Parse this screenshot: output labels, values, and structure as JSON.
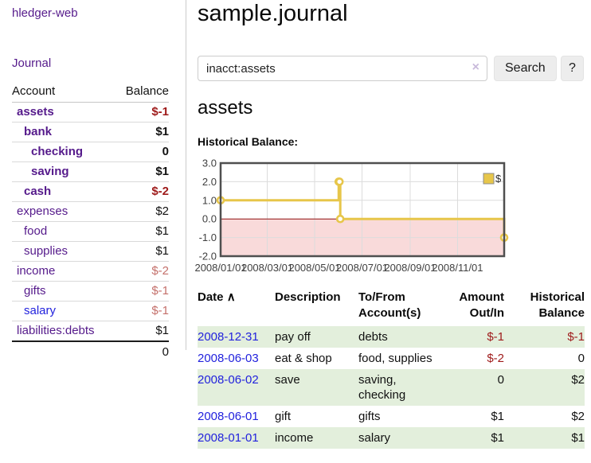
{
  "colors": {
    "link_purple": "#551a8b",
    "link_blue": "#2222dd",
    "negative_strong": "#9e1a1a",
    "negative_soft": "#c4706b",
    "row_stripe_green": "#e3efdc",
    "chart_line_gold": "#e7c64a",
    "chart_negative_pink": "#f9dada",
    "chart_zero_line": "#8f1010"
  },
  "sidebar": {
    "brand": "hledger-web",
    "nav": {
      "journal": "Journal"
    },
    "accounts": {
      "headers": {
        "account": "Account",
        "balance": "Balance"
      },
      "rows": [
        {
          "name": "assets",
          "indent": 0,
          "bold": true,
          "balance": "$-1",
          "balance_style": "neg-strong"
        },
        {
          "name": "bank",
          "indent": 1,
          "bold": true,
          "balance": "$1",
          "balance_style": "pos"
        },
        {
          "name": "checking",
          "indent": 2,
          "bold": true,
          "balance": "0",
          "balance_style": "pos"
        },
        {
          "name": "saving",
          "indent": 2,
          "bold": true,
          "balance": "$1",
          "balance_style": "pos"
        },
        {
          "name": "cash",
          "indent": 1,
          "bold": true,
          "balance": "$-2",
          "balance_style": "neg-strong"
        },
        {
          "name": "expenses",
          "indent": 0,
          "bold": false,
          "balance": "$2",
          "balance_style": "pos"
        },
        {
          "name": "food",
          "indent": 1,
          "bold": false,
          "balance": "$1",
          "balance_style": "pos"
        },
        {
          "name": "supplies",
          "indent": 1,
          "bold": false,
          "balance": "$1",
          "balance_style": "pos"
        },
        {
          "name": "income",
          "indent": 0,
          "bold": false,
          "balance": "$-2",
          "balance_style": "neg-soft"
        },
        {
          "name": "gifts",
          "indent": 1,
          "bold": false,
          "balance": "$-1",
          "balance_style": "neg-soft"
        },
        {
          "name": "salary",
          "indent": 1,
          "bold": false,
          "balance": "$-1",
          "balance_style": "neg-soft",
          "link_style": "blue"
        },
        {
          "name": "liabilities:debts",
          "indent": 0,
          "bold": false,
          "balance": "$1",
          "balance_style": "pos"
        }
      ],
      "total": "0"
    }
  },
  "main": {
    "title": "sample.journal",
    "search": {
      "value": "inacct:assets",
      "clear_icon": "×",
      "button": "Search",
      "help_button": "?"
    },
    "account_heading": "assets",
    "chart_heading": "Historical Balance:"
  },
  "chart_data": {
    "type": "line",
    "title": "Historical Balance",
    "step": true,
    "series": [
      {
        "name": "$",
        "color": "#e7c64a",
        "points": [
          [
            "2008-01-01",
            1
          ],
          [
            "2008-06-01",
            2
          ],
          [
            "2008-06-02",
            2
          ],
          [
            "2008-06-03",
            0
          ],
          [
            "2008-12-31",
            -1
          ]
        ]
      }
    ],
    "x_range": [
      "2008-01-01",
      "2008-12-31"
    ],
    "ylim": [
      -2,
      3
    ],
    "y_ticks": [
      "3.0",
      "2.0",
      "1.0",
      "0.0",
      "-1.0",
      "-2.0"
    ],
    "x_ticks": [
      {
        "label": "2008/01/01",
        "date": "2008-01-01"
      },
      {
        "label": "2008/03/01",
        "date": "2008-03-01"
      },
      {
        "label": "2008/05/01",
        "date": "2008-05-01"
      },
      {
        "label": "2008/07/01",
        "date": "2008-07-01"
      },
      {
        "label": "2008/09/01",
        "date": "2008-09-01"
      },
      {
        "label": "2008/11/01",
        "date": "2008-11-01"
      }
    ],
    "legend": {
      "label": "$",
      "position": "top-right"
    },
    "grid": true,
    "negative_region_color": "#f9dada",
    "zero_line_color": "#8f1010"
  },
  "register": {
    "headers": {
      "date": "Date",
      "sort_icon": "∧",
      "description": "Description",
      "tofrom": "To/From Account(s)",
      "amount": "Amount Out/In",
      "balance": "Historical Balance"
    },
    "rows": [
      {
        "date": "2008-12-31",
        "description": "pay off",
        "accounts": "debts",
        "amount": "$-1",
        "amount_neg": true,
        "balance": "$-1",
        "balance_neg": true
      },
      {
        "date": "2008-06-03",
        "description": "eat & shop",
        "accounts": "food, supplies",
        "amount": "$-2",
        "amount_neg": true,
        "balance": "0",
        "balance_neg": false
      },
      {
        "date": "2008-06-02",
        "description": "save",
        "accounts": "saving, checking",
        "amount": "0",
        "amount_neg": false,
        "balance": "$2",
        "balance_neg": false
      },
      {
        "date": "2008-06-01",
        "description": "gift",
        "accounts": "gifts",
        "amount": "$1",
        "amount_neg": false,
        "balance": "$2",
        "balance_neg": false
      },
      {
        "date": "2008-01-01",
        "description": "income",
        "accounts": "salary",
        "amount": "$1",
        "amount_neg": false,
        "balance": "$1",
        "balance_neg": false
      }
    ]
  }
}
